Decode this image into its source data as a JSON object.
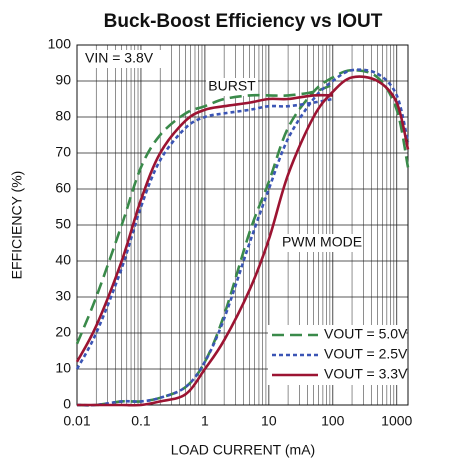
{
  "chart_data": {
    "type": "line",
    "title": "Buck-Boost Efficiency vs IOUT",
    "x_label": "LOAD CURRENT (mA)",
    "y_label": "EFFICIENCY (%)",
    "annotations": [
      "VIN = 3.8V",
      "BURST",
      "PWM MODE"
    ],
    "x": [
      0.01,
      0.02,
      0.05,
      0.1,
      0.2,
      0.5,
      1,
      2,
      5,
      10,
      20,
      50,
      100,
      200,
      500,
      1000,
      1500
    ],
    "xlim": [
      0.01,
      1500
    ],
    "xscale": "log",
    "xticks": [
      0.01,
      0.1,
      1,
      10,
      100,
      1000
    ],
    "ylim": [
      0,
      100
    ],
    "yticks": [
      0,
      10,
      20,
      30,
      40,
      50,
      60,
      70,
      80,
      90,
      100
    ],
    "grid": true,
    "legend": "lower right",
    "series": [
      {
        "name": "VOUT = 5.0V",
        "color": "#3a8a4a",
        "dash": "12,6",
        "values": [
          17,
          30,
          50,
          66,
          75,
          81,
          83,
          85,
          86,
          86,
          86,
          87,
          89,
          null,
          null,
          null,
          null
        ],
        "pwm_values": [
          0,
          0,
          1,
          1,
          2,
          5,
          12,
          25,
          48,
          62,
          77,
          87,
          91,
          93,
          91,
          82,
          66
        ]
      },
      {
        "name": "VOUT = 2.5V",
        "color": "#3b55b5",
        "dash": "4,3",
        "values": [
          10,
          20,
          38,
          55,
          68,
          77,
          80,
          81,
          82,
          83,
          83,
          84,
          85,
          null,
          null,
          null,
          null
        ],
        "pwm_values": [
          0,
          0,
          1,
          1,
          2,
          5,
          12,
          24,
          45,
          60,
          74,
          85,
          90,
          93,
          92,
          86,
          73
        ]
      },
      {
        "name": "VOUT = 3.3V",
        "color": "#9c1432",
        "dash": "none",
        "values": [
          12,
          22,
          40,
          57,
          70,
          79,
          82,
          83,
          84,
          85,
          85,
          86,
          86,
          null,
          null,
          null,
          null
        ],
        "pwm_values": [
          0,
          0,
          0,
          0,
          1,
          3,
          10,
          18,
          32,
          46,
          64,
          80,
          87,
          91,
          90,
          84,
          71
        ]
      }
    ]
  }
}
